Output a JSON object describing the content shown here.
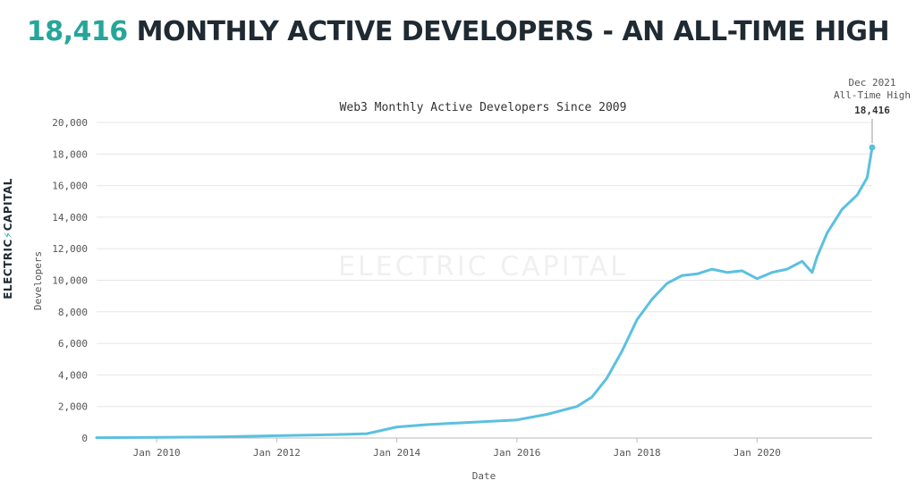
{
  "headline": {
    "number": "18,416",
    "text": "MONTHLY ACTIVE DEVELOPERS - AN ALL-TIME HIGH"
  },
  "brand": {
    "logo_text": "ELECTRIC CAPITAL",
    "watermark": "ELECTRIC CAPITAL"
  },
  "colors": {
    "accent": "#26a69a",
    "line": "#5bc0e0",
    "text": "#1f2a33"
  },
  "chart_data": {
    "type": "line",
    "title": "Web3 Monthly Active Developers Since 2009",
    "xlabel": "Date",
    "ylabel": "Developers",
    "xlim": [
      "2009-01-01",
      "2021-12-01"
    ],
    "ylim": [
      0,
      20000
    ],
    "grid": true,
    "y_ticks": [
      0,
      2000,
      4000,
      6000,
      8000,
      10000,
      12000,
      14000,
      16000,
      18000,
      20000
    ],
    "y_tick_labels": [
      "0",
      "2,000",
      "4,000",
      "6,000",
      "8,000",
      "10,000",
      "12,000",
      "14,000",
      "16,000",
      "18,000",
      "20,000"
    ],
    "x_ticks": [
      "2010-01-01",
      "2012-01-01",
      "2014-01-01",
      "2016-01-01",
      "2018-01-01",
      "2020-01-01"
    ],
    "x_tick_labels": [
      "Jan 2010",
      "Jan 2012",
      "Jan 2014",
      "Jan 2016",
      "Jan 2018",
      "Jan 2020"
    ],
    "series": [
      {
        "x": [
          "2009-01-01",
          "2010-01-01",
          "2011-01-01",
          "2012-01-01",
          "2013-01-01",
          "2013-07-01",
          "2014-01-01",
          "2014-07-01",
          "2015-01-01",
          "2015-07-01",
          "2016-01-01",
          "2016-07-01",
          "2017-01-01",
          "2017-04-01",
          "2017-07-01",
          "2017-10-01",
          "2018-01-01",
          "2018-04-01",
          "2018-07-01",
          "2018-10-01",
          "2019-01-01",
          "2019-04-01",
          "2019-07-01",
          "2019-10-01",
          "2020-01-01",
          "2020-04-01",
          "2020-07-01",
          "2020-10-01",
          "2020-12-01",
          "2021-01-01",
          "2021-03-01",
          "2021-06-01",
          "2021-09-01",
          "2021-11-01",
          "2021-12-01"
        ],
        "values": [
          20,
          40,
          70,
          150,
          220,
          280,
          700,
          850,
          950,
          1050,
          1150,
          1500,
          2000,
          2600,
          3800,
          5500,
          7500,
          8800,
          9800,
          10300,
          10400,
          10700,
          10500,
          10600,
          10100,
          10500,
          10700,
          11200,
          10500,
          11500,
          13000,
          14500,
          15400,
          16500,
          18416
        ]
      }
    ],
    "annotation": {
      "x": "2021-12-01",
      "y": 18416,
      "line1": "Dec 2021",
      "line2": "All-Time High",
      "value_label": "18,416"
    }
  }
}
